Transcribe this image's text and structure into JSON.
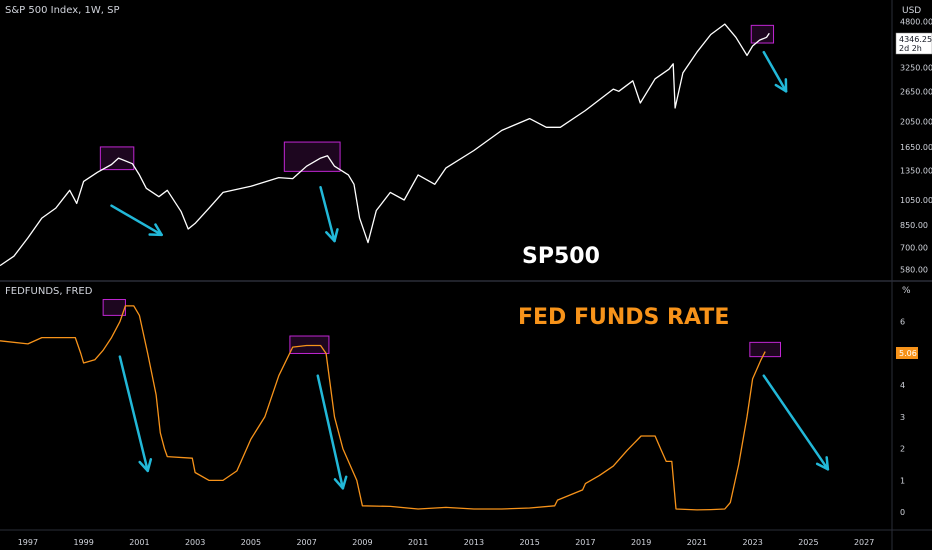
{
  "chart_data": [
    {
      "type": "line",
      "title": "S&P 500 Index, 1W, SP",
      "annotation": "SP500",
      "yaxis_unit": "USD",
      "scale": "log",
      "ylim": [
        540,
        5300
      ],
      "yticks": [
        580,
        700,
        850,
        1050,
        1350,
        1650,
        2050,
        2650,
        3250,
        4800
      ],
      "ytick_labels": [
        "580.00",
        "700.00",
        "850.00",
        "1050.00",
        "1350.00",
        "1650.00",
        "2050.00",
        "2650.00",
        "3250.00",
        "4800.00"
      ],
      "last_value": "4346.25",
      "countdown": "2d 2h",
      "series": [
        {
          "color": "#ffffff",
          "x": [
            1996.0,
            1996.5,
            1997.0,
            1997.5,
            1998.0,
            1998.5,
            1998.75,
            1999.0,
            1999.5,
            2000.0,
            2000.25,
            2000.75,
            2001.0,
            2001.25,
            2001.7,
            2002.0,
            2002.5,
            2002.75,
            2003.0,
            2003.5,
            2004.0,
            2005.0,
            2006.0,
            2006.5,
            2007.0,
            2007.5,
            2007.75,
            2008.0,
            2008.5,
            2008.7,
            2008.9,
            2009.0,
            2009.2,
            2009.5,
            2010.0,
            2010.5,
            2011.0,
            2011.6,
            2012.0,
            2013.0,
            2014.0,
            2015.0,
            2015.6,
            2016.1,
            2017.0,
            2018.0,
            2018.2,
            2018.7,
            2018.97,
            2019.5,
            2020.0,
            2020.15,
            2020.22,
            2020.5,
            2021.0,
            2021.5,
            2022.0,
            2022.4,
            2022.8,
            2023.0,
            2023.25,
            2023.5,
            2023.6
          ],
          "y": [
            600,
            650,
            760,
            900,
            980,
            1140,
            1020,
            1230,
            1330,
            1420,
            1500,
            1430,
            1300,
            1160,
            1080,
            1140,
            950,
            820,
            860,
            980,
            1120,
            1180,
            1270,
            1260,
            1400,
            1500,
            1530,
            1400,
            1300,
            1200,
            900,
            840,
            730,
            960,
            1120,
            1050,
            1300,
            1200,
            1380,
            1600,
            1900,
            2100,
            1950,
            1950,
            2250,
            2700,
            2650,
            2900,
            2400,
            2950,
            3200,
            3350,
            2300,
            3100,
            3700,
            4300,
            4700,
            4200,
            3600,
            3900,
            4100,
            4200,
            4346
          ]
        }
      ],
      "highlight_boxes": [
        {
          "x": [
            1999.6,
            2000.8
          ],
          "y": [
            1360,
            1650
          ]
        },
        {
          "x": [
            2006.2,
            2008.2
          ],
          "y": [
            1340,
            1720
          ]
        },
        {
          "x": [
            2022.95,
            2023.75
          ],
          "y": [
            4000,
            4650
          ]
        }
      ],
      "arrows": [
        {
          "from": [
            2000.0,
            1000
          ],
          "to": [
            2001.8,
            780
          ]
        },
        {
          "from": [
            2007.5,
            1170
          ],
          "to": [
            2008.0,
            740
          ]
        },
        {
          "from": [
            2023.4,
            3700
          ],
          "to": [
            2024.2,
            2650
          ]
        }
      ]
    },
    {
      "type": "line",
      "title": "FEDFUNDS, FRED",
      "annotation": "FED FUNDS RATE",
      "yaxis_unit": "%",
      "ylim": [
        -0.5,
        7.0
      ],
      "yticks": [
        0,
        1,
        2,
        3,
        4,
        5,
        6
      ],
      "ytick_labels": [
        "0",
        "1",
        "2",
        "3",
        "4",
        "5",
        "6"
      ],
      "last_value": "5.06",
      "series": [
        {
          "color": "#f7931a",
          "x": [
            1996.0,
            1997.0,
            1997.5,
            1998.0,
            1998.7,
            1998.9,
            1999.0,
            1999.4,
            1999.7,
            2000.0,
            2000.3,
            2000.5,
            2000.8,
            2001.0,
            2001.3,
            2001.6,
            2001.75,
            2001.9,
            2002.0,
            2002.9,
            2003.0,
            2003.5,
            2004.0,
            2004.5,
            2005.0,
            2005.5,
            2006.0,
            2006.5,
            2007.0,
            2007.5,
            2007.7,
            2008.0,
            2008.3,
            2008.8,
            2009.0,
            2010.0,
            2011.0,
            2012.0,
            2013.0,
            2014.0,
            2015.0,
            2015.9,
            2016.0,
            2016.9,
            2017.0,
            2017.5,
            2018.0,
            2018.5,
            2019.0,
            2019.5,
            2019.7,
            2019.9,
            2020.1,
            2020.25,
            2021.0,
            2021.5,
            2022.0,
            2022.2,
            2022.5,
            2022.8,
            2023.0,
            2023.3,
            2023.45
          ],
          "y": [
            5.4,
            5.3,
            5.5,
            5.5,
            5.5,
            5.0,
            4.7,
            4.8,
            5.1,
            5.5,
            6.0,
            6.5,
            6.5,
            6.2,
            5.0,
            3.7,
            2.5,
            2.0,
            1.75,
            1.7,
            1.25,
            1.0,
            1.0,
            1.3,
            2.3,
            3.0,
            4.3,
            5.2,
            5.25,
            5.25,
            5.0,
            3.0,
            2.0,
            1.0,
            0.2,
            0.18,
            0.1,
            0.15,
            0.1,
            0.1,
            0.13,
            0.2,
            0.38,
            0.7,
            0.9,
            1.15,
            1.45,
            1.95,
            2.4,
            2.4,
            2.0,
            1.6,
            1.6,
            0.1,
            0.07,
            0.08,
            0.1,
            0.3,
            1.5,
            3.0,
            4.2,
            4.8,
            5.06
          ]
        }
      ],
      "highlight_boxes": [
        {
          "x": [
            1999.7,
            2000.5
          ],
          "y": [
            6.2,
            6.7
          ]
        },
        {
          "x": [
            2006.4,
            2007.8
          ],
          "y": [
            5.0,
            5.55
          ]
        },
        {
          "x": [
            2022.9,
            2024.0
          ],
          "y": [
            4.9,
            5.35
          ]
        }
      ],
      "arrows": [
        {
          "from": [
            2000.3,
            4.9
          ],
          "to": [
            2001.3,
            1.3
          ]
        },
        {
          "from": [
            2007.4,
            4.3
          ],
          "to": [
            2008.3,
            0.75
          ]
        },
        {
          "from": [
            2023.4,
            4.3
          ],
          "to": [
            2025.7,
            1.35
          ]
        }
      ]
    }
  ],
  "time_axis": {
    "labels": [
      "1997",
      "1999",
      "2001",
      "2003",
      "2005",
      "2007",
      "2009",
      "2011",
      "2013",
      "2015",
      "2017",
      "2019",
      "2021",
      "2023",
      "2025",
      "2027"
    ],
    "values": [
      1997,
      1999,
      2001,
      2003,
      2005,
      2007,
      2009,
      2011,
      2013,
      2015,
      2017,
      2019,
      2021,
      2023,
      2025,
      2027
    ],
    "range": [
      1996.0,
      2028.0
    ]
  },
  "colors": {
    "background": "#000000",
    "text": "#d1d4dc",
    "axis_line": "#2a2e39",
    "highlight_box": "#c026d3",
    "arrow": "#22b8d8",
    "sp500_label": "#ffffff",
    "fed_label": "#f7931a"
  }
}
